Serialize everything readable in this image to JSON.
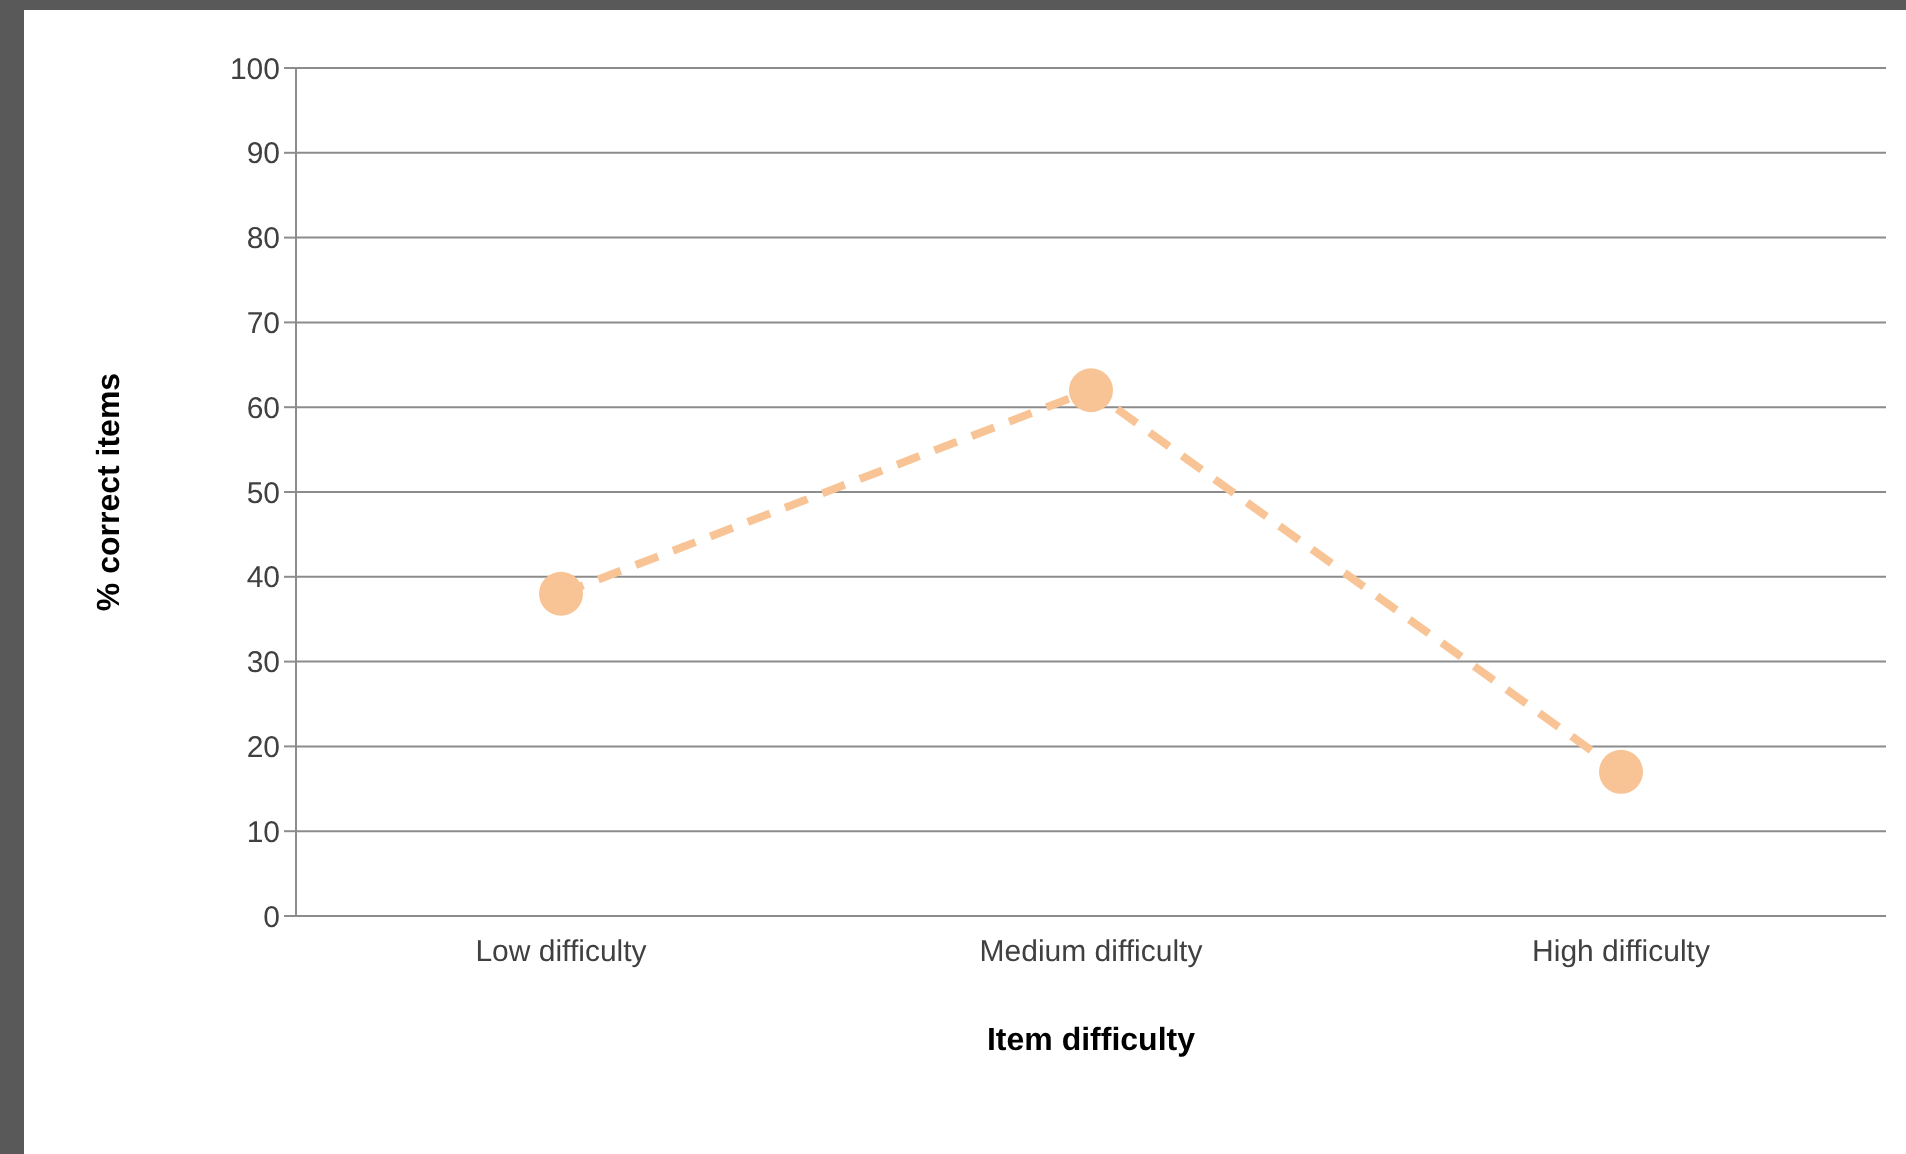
{
  "chart_data": {
    "type": "line",
    "xlabel": "Item difficulty",
    "ylabel": "% correct items",
    "categories": [
      "Low difficulty",
      "Medium difficulty",
      "High difficulty"
    ],
    "series": [
      {
        "color": "#f8c496",
        "values": [
          38,
          62,
          17
        ]
      }
    ],
    "ylim": [
      0,
      100
    ],
    "yticks": [
      0,
      10,
      20,
      30,
      40,
      50,
      60,
      70,
      80,
      90,
      100
    ],
    "grid": "y",
    "marker": "circle",
    "line_style": "dashed"
  }
}
